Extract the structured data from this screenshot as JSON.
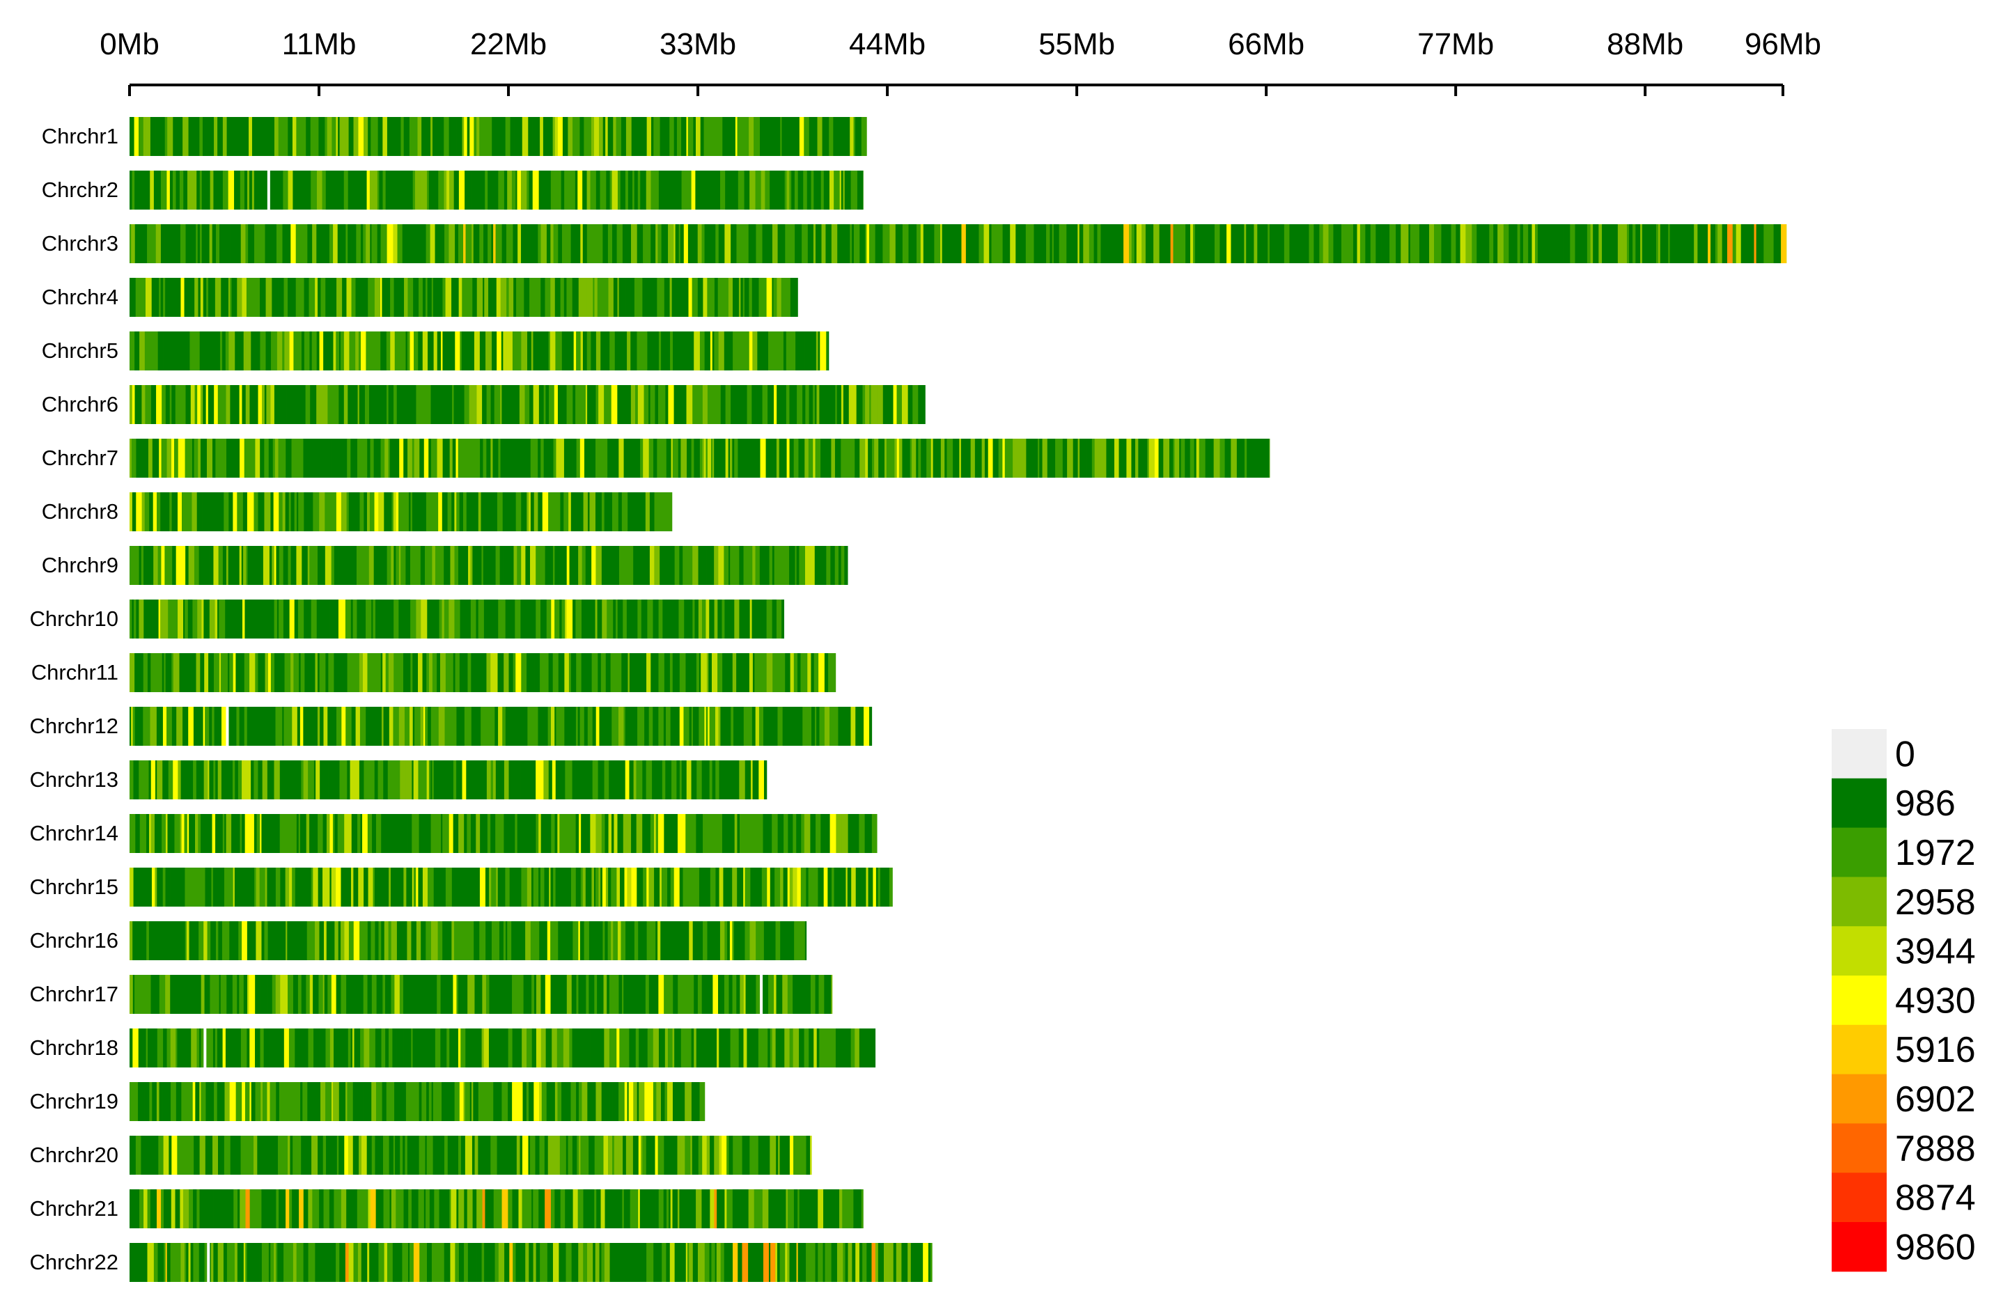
{
  "chart_data": {
    "type": "heatmap",
    "title": "",
    "xlabel": "",
    "ylabel": "",
    "x_ticks": [
      "0Mb",
      "11Mb",
      "22Mb",
      "33Mb",
      "44Mb",
      "55Mb",
      "66Mb",
      "77Mb",
      "88Mb",
      "96Mb"
    ],
    "x_tick_values": [
      0,
      11,
      22,
      33,
      44,
      55,
      66,
      77,
      88,
      96
    ],
    "xlim": [
      0,
      96
    ],
    "legend_position": "bottom-right",
    "legend": {
      "values": [
        "0",
        "986",
        "1972",
        "2958",
        "3944",
        "4930",
        "5916",
        "6902",
        "7888",
        "8874",
        "9860"
      ],
      "colors": [
        "#EFEFEF",
        "#007A00",
        "#3A9E00",
        "#7DBB00",
        "#C2DE00",
        "#FFFF00",
        "#FFCC00",
        "#FF9900",
        "#FF6600",
        "#FF3300",
        "#FF0000"
      ]
    },
    "chromosomes": [
      {
        "name": "Chrchr1",
        "length_mb": 42.8,
        "gaps_mb": []
      },
      {
        "name": "Chrchr2",
        "length_mb": 42.6,
        "gaps_mb": [
          8.0
        ]
      },
      {
        "name": "Chrchr3",
        "length_mb": 96.2,
        "gaps_mb": []
      },
      {
        "name": "Chrchr4",
        "length_mb": 38.8,
        "gaps_mb": []
      },
      {
        "name": "Chrchr5",
        "length_mb": 40.6,
        "gaps_mb": []
      },
      {
        "name": "Chrchr6",
        "length_mb": 46.2,
        "gaps_mb": []
      },
      {
        "name": "Chrchr7",
        "length_mb": 66.2,
        "gaps_mb": []
      },
      {
        "name": "Chrchr8",
        "length_mb": 31.5,
        "gaps_mb": []
      },
      {
        "name": "Chrchr9",
        "length_mb": 41.7,
        "gaps_mb": []
      },
      {
        "name": "Chrchr10",
        "length_mb": 38.0,
        "gaps_mb": []
      },
      {
        "name": "Chrchr11",
        "length_mb": 41.0,
        "gaps_mb": []
      },
      {
        "name": "Chrchr12",
        "length_mb": 43.1,
        "gaps_mb": [
          5.6
        ]
      },
      {
        "name": "Chrchr13",
        "length_mb": 37.0,
        "gaps_mb": []
      },
      {
        "name": "Chrchr14",
        "length_mb": 43.4,
        "gaps_mb": []
      },
      {
        "name": "Chrchr15",
        "length_mb": 44.3,
        "gaps_mb": []
      },
      {
        "name": "Chrchr16",
        "length_mb": 39.3,
        "gaps_mb": []
      },
      {
        "name": "Chrchr17",
        "length_mb": 40.8,
        "gaps_mb": [
          36.6
        ]
      },
      {
        "name": "Chrchr18",
        "length_mb": 43.3,
        "gaps_mb": [
          4.3
        ]
      },
      {
        "name": "Chrchr19",
        "length_mb": 33.4,
        "gaps_mb": []
      },
      {
        "name": "Chrchr20",
        "length_mb": 39.6,
        "gaps_mb": []
      },
      {
        "name": "Chrchr21",
        "length_mb": 42.6,
        "gaps_mb": []
      },
      {
        "name": "Chrchr22",
        "length_mb": 46.6,
        "gaps_mb": [
          4.5
        ]
      }
    ]
  }
}
